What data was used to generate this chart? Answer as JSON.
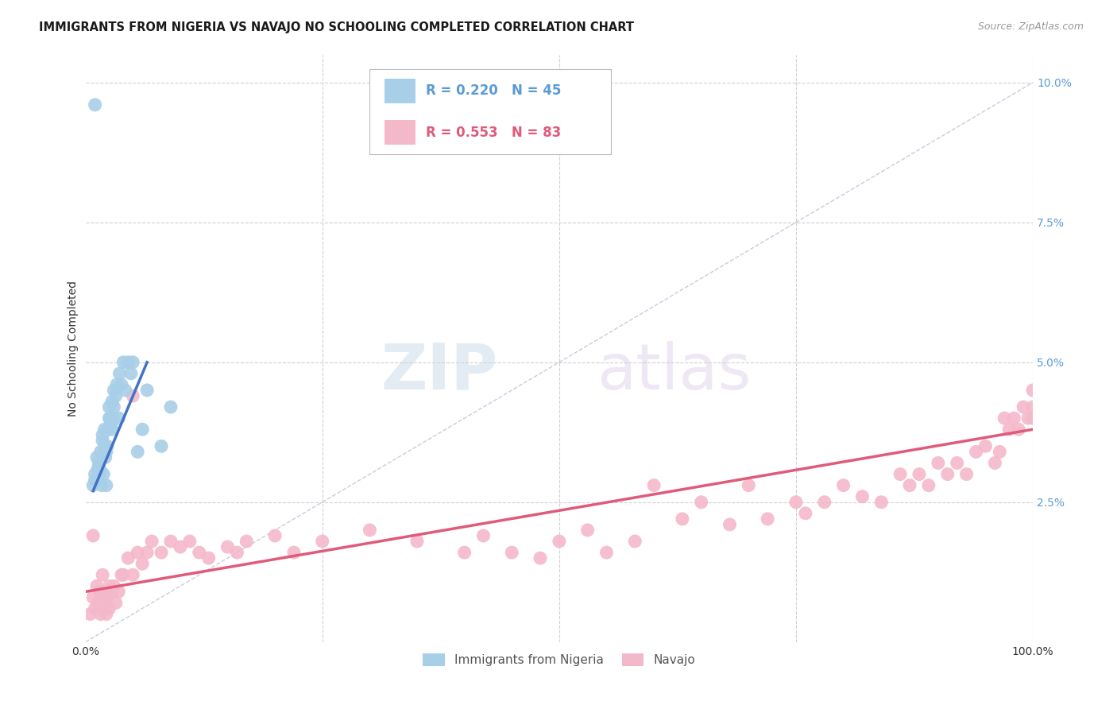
{
  "title": "IMMIGRANTS FROM NIGERIA VS NAVAJO NO SCHOOLING COMPLETED CORRELATION CHART",
  "source": "Source: ZipAtlas.com",
  "ylabel": "No Schooling Completed",
  "ytick_values": [
    0.025,
    0.05,
    0.075,
    0.1
  ],
  "ytick_labels": [
    "2.5%",
    "5.0%",
    "7.5%",
    "10.0%"
  ],
  "xlim": [
    0.0,
    1.0
  ],
  "ylim": [
    0.0,
    0.105
  ],
  "legend_blue_r": "R = 0.220",
  "legend_blue_n": "N = 45",
  "legend_pink_r": "R = 0.553",
  "legend_pink_n": "N = 83",
  "legend_label_blue": "Immigrants from Nigeria",
  "legend_label_pink": "Navajo",
  "blue_color": "#a8cfe8",
  "pink_color": "#f4b8cb",
  "blue_line_color": "#4472c4",
  "pink_line_color": "#e05a7a",
  "diagonal_color": "#c0c8d8",
  "watermark_zip": "ZIP",
  "watermark_atlas": "atlas",
  "blue_scatter_x": [
    0.008,
    0.01,
    0.01,
    0.012,
    0.013,
    0.014,
    0.015,
    0.015,
    0.016,
    0.017,
    0.018,
    0.018,
    0.019,
    0.02,
    0.02,
    0.021,
    0.022,
    0.022,
    0.023,
    0.024,
    0.025,
    0.025,
    0.026,
    0.027,
    0.028,
    0.028,
    0.029,
    0.03,
    0.03,
    0.032,
    0.033,
    0.035,
    0.036,
    0.038,
    0.04,
    0.042,
    0.045,
    0.048,
    0.05,
    0.055,
    0.06,
    0.065,
    0.08,
    0.09,
    0.01
  ],
  "blue_scatter_y": [
    0.028,
    0.029,
    0.03,
    0.033,
    0.031,
    0.032,
    0.03,
    0.031,
    0.034,
    0.028,
    0.036,
    0.037,
    0.03,
    0.035,
    0.038,
    0.033,
    0.034,
    0.028,
    0.035,
    0.038,
    0.04,
    0.042,
    0.04,
    0.039,
    0.043,
    0.038,
    0.04,
    0.045,
    0.042,
    0.044,
    0.046,
    0.04,
    0.048,
    0.046,
    0.05,
    0.045,
    0.05,
    0.048,
    0.05,
    0.034,
    0.038,
    0.045,
    0.035,
    0.042,
    0.096
  ],
  "pink_scatter_x": [
    0.005,
    0.008,
    0.01,
    0.012,
    0.013,
    0.015,
    0.016,
    0.018,
    0.019,
    0.02,
    0.022,
    0.023,
    0.025,
    0.025,
    0.028,
    0.03,
    0.032,
    0.035,
    0.038,
    0.04,
    0.045,
    0.05,
    0.055,
    0.06,
    0.065,
    0.07,
    0.08,
    0.09,
    0.1,
    0.11,
    0.12,
    0.13,
    0.15,
    0.16,
    0.17,
    0.2,
    0.22,
    0.25,
    0.3,
    0.35,
    0.4,
    0.42,
    0.45,
    0.48,
    0.5,
    0.53,
    0.55,
    0.58,
    0.6,
    0.63,
    0.65,
    0.68,
    0.7,
    0.72,
    0.75,
    0.76,
    0.78,
    0.8,
    0.82,
    0.84,
    0.86,
    0.87,
    0.88,
    0.89,
    0.9,
    0.91,
    0.92,
    0.93,
    0.94,
    0.95,
    0.96,
    0.965,
    0.97,
    0.975,
    0.98,
    0.985,
    0.99,
    0.995,
    1.0,
    1.0,
    1.0,
    0.008,
    0.05
  ],
  "pink_scatter_y": [
    0.005,
    0.008,
    0.006,
    0.01,
    0.007,
    0.009,
    0.005,
    0.012,
    0.008,
    0.006,
    0.005,
    0.008,
    0.01,
    0.006,
    0.009,
    0.01,
    0.007,
    0.009,
    0.012,
    0.012,
    0.015,
    0.012,
    0.016,
    0.014,
    0.016,
    0.018,
    0.016,
    0.018,
    0.017,
    0.018,
    0.016,
    0.015,
    0.017,
    0.016,
    0.018,
    0.019,
    0.016,
    0.018,
    0.02,
    0.018,
    0.016,
    0.019,
    0.016,
    0.015,
    0.018,
    0.02,
    0.016,
    0.018,
    0.028,
    0.022,
    0.025,
    0.021,
    0.028,
    0.022,
    0.025,
    0.023,
    0.025,
    0.028,
    0.026,
    0.025,
    0.03,
    0.028,
    0.03,
    0.028,
    0.032,
    0.03,
    0.032,
    0.03,
    0.034,
    0.035,
    0.032,
    0.034,
    0.04,
    0.038,
    0.04,
    0.038,
    0.042,
    0.04,
    0.045,
    0.04,
    0.042,
    0.019,
    0.044
  ],
  "blue_line_x": [
    0.008,
    0.065
  ],
  "blue_line_y": [
    0.027,
    0.05
  ],
  "pink_line_x": [
    0.0,
    1.0
  ],
  "pink_line_y": [
    0.009,
    0.038
  ]
}
